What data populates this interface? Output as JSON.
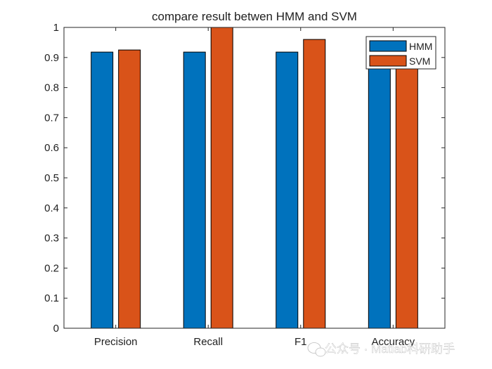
{
  "chart_data": {
    "type": "bar",
    "title": "compare result betwen HMM and SVM",
    "xlabel": "",
    "ylabel": "",
    "categories": [
      "Precision",
      "Recall",
      "F1",
      "Accuracy"
    ],
    "series": [
      {
        "name": "HMM",
        "values": [
          0.918,
          0.918,
          0.918,
          0.918
        ],
        "color": "#0072BD"
      },
      {
        "name": "SVM",
        "values": [
          0.925,
          1.0,
          0.96,
          0.918
        ],
        "color": "#D95319"
      }
    ],
    "ylim": [
      0,
      1
    ],
    "yticks": [
      "0",
      "0.1",
      "0.2",
      "0.3",
      "0.4",
      "0.5",
      "0.6",
      "0.7",
      "0.8",
      "0.9",
      "1"
    ],
    "grid": false,
    "legend_position": "top-right"
  },
  "watermark": {
    "text": "公众号 · Matlab科研助手",
    "icon": "wechat-icon"
  }
}
